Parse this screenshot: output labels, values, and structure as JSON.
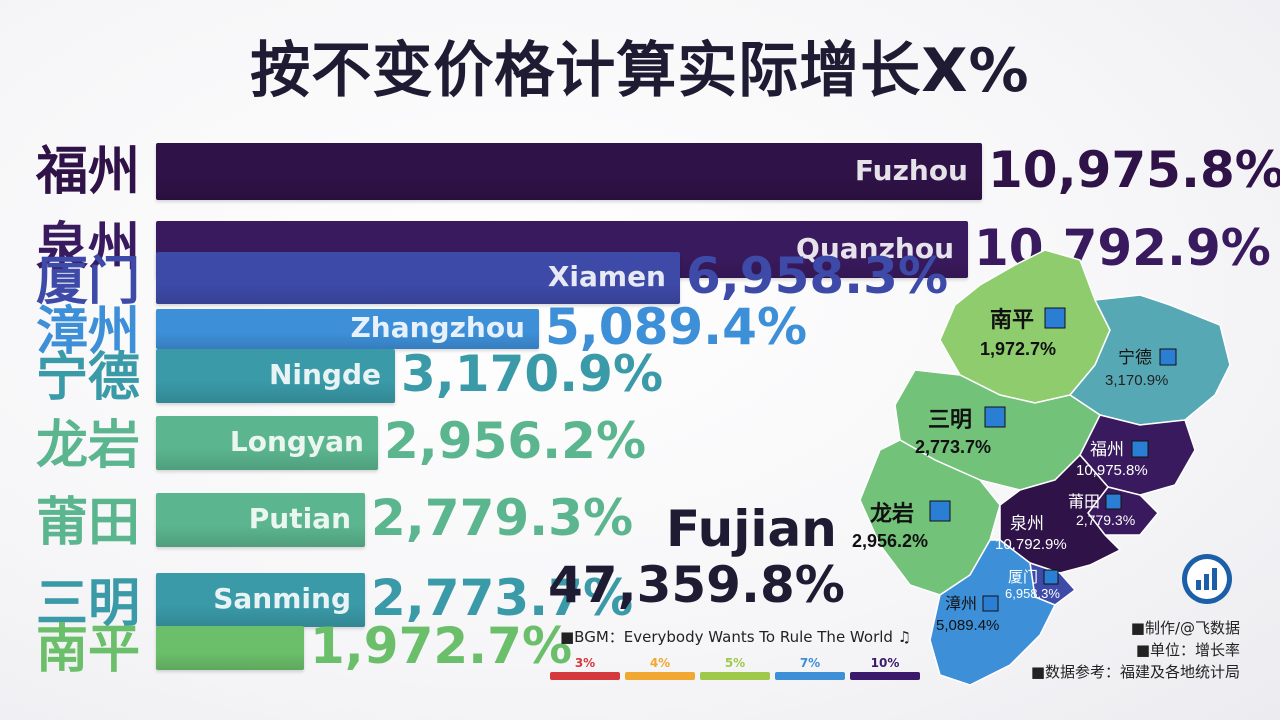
{
  "title": "按不变价格计算实际增长X%",
  "total": {
    "name": "Fujian",
    "value": "47,359.8%"
  },
  "bgm": "■BGM：Everybody Wants To Rule The World ♫",
  "credits": [
    "■制作/@飞数据",
    "■单位：增长率",
    "■数据参考：福建及各地统计局"
  ],
  "legend": [
    {
      "label": "3%",
      "color": "#d6393b"
    },
    {
      "label": "4%",
      "color": "#f0a830"
    },
    {
      "label": "5%",
      "color": "#9ec94a"
    },
    {
      "label": "7%",
      "color": "#3d8fd8"
    },
    {
      "label": "10%",
      "color": "#3b1a6b"
    }
  ],
  "chart_data": {
    "type": "bar",
    "title": "按不变价格计算实际增长X%",
    "categories": [
      "福州",
      "泉州",
      "厦门",
      "漳州",
      "宁德",
      "龙岩",
      "莆田",
      "三明",
      "南平"
    ],
    "english": [
      "Fuzhou",
      "Quanzhou",
      "Xiamen",
      "Zhangzhou",
      "Ningde",
      "Longyan",
      "Putian",
      "Sanming",
      ""
    ],
    "values": [
      10975.8,
      10792.9,
      6958.3,
      5089.4,
      3170.9,
      2956.2,
      2779.3,
      2773.7,
      1972.7
    ],
    "labels": [
      "10,975.8%",
      "10,792.9%",
      "6,958.3%",
      "5,089.4%",
      "3,170.9%",
      "2,956.2%",
      "2,779.3%",
      "2,773.7%",
      "1,972.7%"
    ],
    "colors": [
      "#2f1247",
      "#3a1a5e",
      "#3e4aa8",
      "#3d8fd8",
      "#3a9aa8",
      "#5bb58f",
      "#5bb58f",
      "#3a9aa8",
      "#6bbf6a"
    ],
    "xlim": [
      0,
      10975.8
    ]
  },
  "map_labels": [
    {
      "name": "南平",
      "value": "1,972.7%"
    },
    {
      "name": "宁德",
      "value": "3,170.9%"
    },
    {
      "name": "三明",
      "value": "2,773.7%"
    },
    {
      "name": "福州",
      "value": "10,975.8%"
    },
    {
      "name": "龙岩",
      "value": "2,956.2%"
    },
    {
      "name": "莆田",
      "value": "2,779.3%"
    },
    {
      "name": "泉州",
      "value": "10,792.9%"
    },
    {
      "name": "厦门",
      "value": "6,958.3%"
    },
    {
      "name": "漳州",
      "value": "5,089.4%"
    }
  ]
}
